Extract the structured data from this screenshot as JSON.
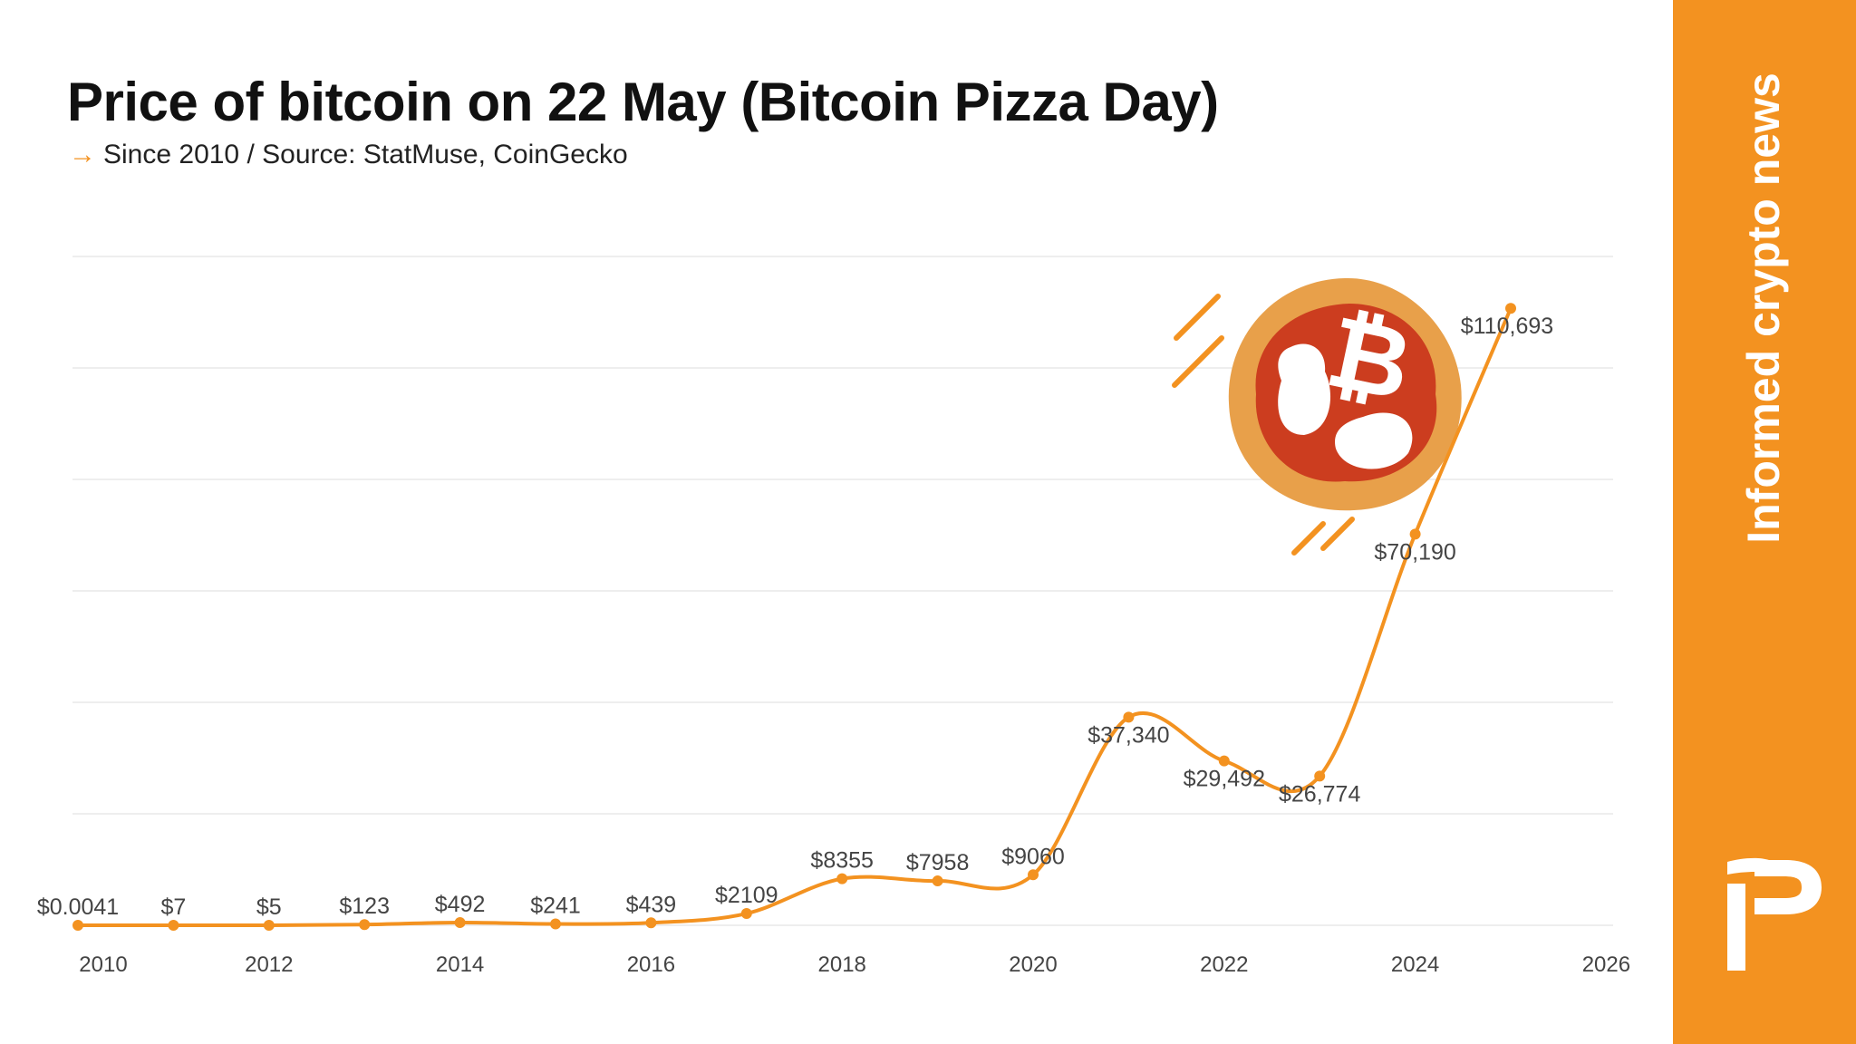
{
  "title": "Price of bitcoin on 22 May (Bitcoin Pizza Day)",
  "subtitle": "Since 2010 / Source: StatMuse, CoinGecko",
  "subtitle_icon": "arrow-right-icon",
  "sidebar": {
    "tagline": "Informed crypto news",
    "logo": "ip-logo",
    "color": "#f39220"
  },
  "illustration": "bitcoin-pizza-icon",
  "chart_data": {
    "type": "line",
    "title": "Price of bitcoin on 22 May (Bitcoin Pizza Day)",
    "xlabel": "",
    "ylabel": "",
    "x": [
      2010,
      2011,
      2012,
      2013,
      2014,
      2015,
      2016,
      2017,
      2018,
      2019,
      2020,
      2021,
      2022,
      2023,
      2024,
      2025
    ],
    "values": [
      0.0041,
      7,
      5,
      123,
      492,
      241,
      439,
      2109,
      8355,
      7958,
      9060,
      37340,
      29492,
      26774,
      70190,
      110693
    ],
    "labels": [
      "$0.0041",
      "$7",
      "$5",
      "$123",
      "$492",
      "$241",
      "$439",
      "$2109",
      "$8355",
      "$7958",
      "$9060",
      "$37,340",
      "$29,492",
      "$26,774",
      "$70,190",
      "$110,693"
    ],
    "xticks": [
      "2010",
      "2012",
      "2014",
      "2016",
      "2018",
      "2020",
      "2022",
      "2024",
      "2026"
    ],
    "xlim": [
      2010,
      2026
    ],
    "ylim": [
      0,
      120000
    ],
    "grid": "horizontal",
    "y_tick_labels_shown": false,
    "line_color": "#f39220"
  }
}
